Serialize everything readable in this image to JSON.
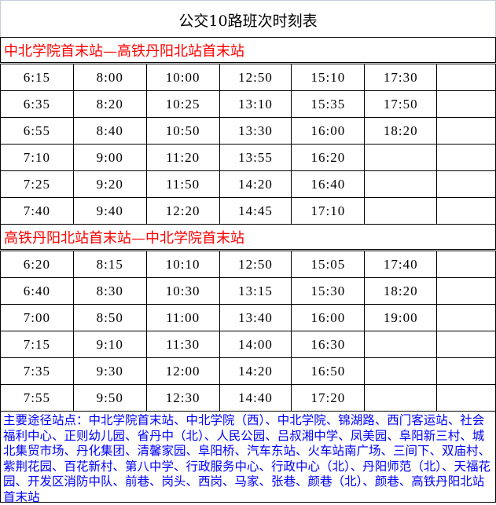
{
  "title": "公交10路班次时刻表",
  "sections": [
    {
      "heading": "中北学院首末站—高铁丹阳北站首末站",
      "rows": [
        [
          "6:15",
          "8:00",
          "10:00",
          "12:50",
          "15:10",
          "17:30",
          ""
        ],
        [
          "6:35",
          "8:20",
          "10:25",
          "13:10",
          "15:35",
          "17:50",
          ""
        ],
        [
          "6:55",
          "8:40",
          "10:50",
          "13:30",
          "16:00",
          "18:20",
          ""
        ],
        [
          "7:10",
          "9:00",
          "11:20",
          "13:55",
          "16:20",
          "",
          ""
        ],
        [
          "7:25",
          "9:20",
          "11:50",
          "14:20",
          "16:40",
          "",
          ""
        ],
        [
          "7:40",
          "9:40",
          "12:20",
          "14:45",
          "17:10",
          "",
          ""
        ]
      ]
    },
    {
      "heading": "高铁丹阳北站首末站—中北学院首末站",
      "rows": [
        [
          "6:20",
          "8:15",
          "10:10",
          "12:50",
          "15:05",
          "17:40",
          ""
        ],
        [
          "6:40",
          "8:30",
          "10:30",
          "13:15",
          "15:30",
          "18:20",
          ""
        ],
        [
          "7:00",
          "8:50",
          "11:00",
          "13:40",
          "16:00",
          "19:00",
          ""
        ],
        [
          "7:15",
          "9:10",
          "11:30",
          "14:00",
          "16:30",
          "",
          ""
        ],
        [
          "7:35",
          "9:30",
          "12:00",
          "14:20",
          "16:50",
          "",
          ""
        ],
        [
          "7:55",
          "9:50",
          "12:30",
          "14:40",
          "17:20",
          "",
          ""
        ]
      ]
    }
  ],
  "route_stops": "主要途径站点：中北学院首末站、中北学院（西）、中北学院、锦湖路、西门客运站、社会福利中心、正则幼儿园、省丹中（北）、人民公园、吕叔湘中学、凤美园、阜阳新三村、城北集贸市场、丹化集团、清馨家园、阜阳桥、汽车东站、火车站南广场、三间下、双庙村、紫荆花园、百花新村、第八中学、行政服务中心、行政中心（北）、丹阳师范（北）、天福花园、开发区消防中队、前巷、岗头、西岗、马家、张巷、颜巷（北）、颜巷、高铁丹阳北站首末站",
  "colors": {
    "heading": "#ff0000",
    "route": "#0000ff"
  }
}
